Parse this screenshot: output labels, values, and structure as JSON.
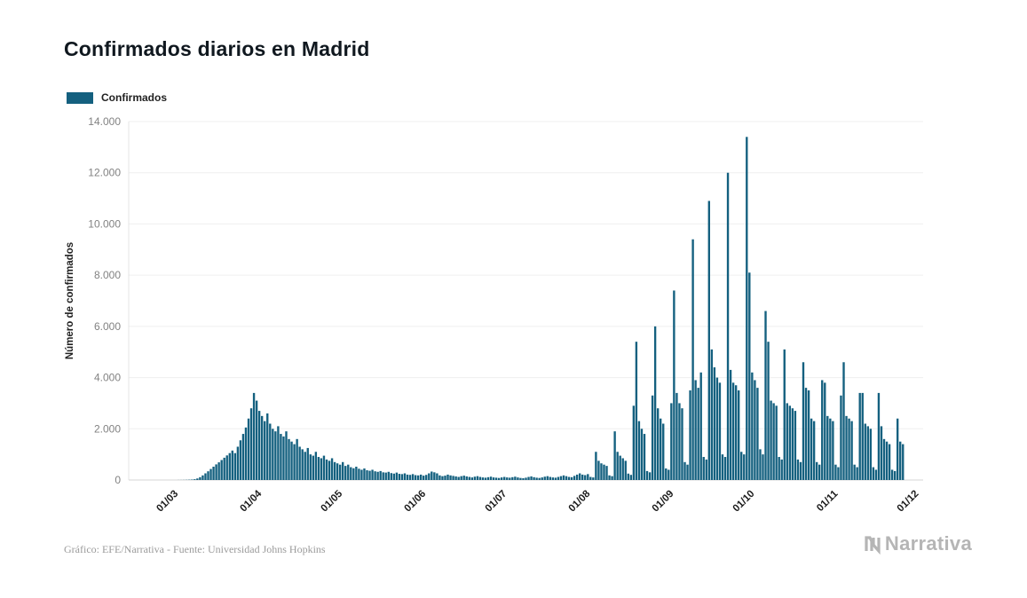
{
  "header": {
    "title": "Confirmados diarios en Madrid"
  },
  "legend": {
    "label": "Confirmados",
    "color": "#14607f"
  },
  "footer": {
    "credit": "Gráfico: EFE/Narrativa - Fuente: Universidad Johns Hopkins",
    "brand": "Narrativa"
  },
  "chart_data": {
    "type": "bar",
    "title": "Confirmados diarios en Madrid",
    "series_name": "Confirmados",
    "color": "#14607f",
    "xlabel": "",
    "ylabel": "Número de confirmados",
    "ylim": [
      0,
      14000
    ],
    "grid": true,
    "legend_position": "top-left",
    "x_start_date": "12/02",
    "x_frequency": "daily",
    "x_total_days": 295,
    "yticks": [
      {
        "value": 0,
        "label": "0"
      },
      {
        "value": 2000,
        "label": "2.000"
      },
      {
        "value": 4000,
        "label": "4.000"
      },
      {
        "value": 6000,
        "label": "6.000"
      },
      {
        "value": 8000,
        "label": "8.000"
      },
      {
        "value": 10000,
        "label": "10.000"
      },
      {
        "value": 12000,
        "label": "12.000"
      },
      {
        "value": 14000,
        "label": "14.000"
      }
    ],
    "xticks": [
      {
        "label": "01/03",
        "day": 18
      },
      {
        "label": "01/04",
        "day": 49
      },
      {
        "label": "01/05",
        "day": 79
      },
      {
        "label": "01/06",
        "day": 110
      },
      {
        "label": "01/07",
        "day": 140
      },
      {
        "label": "01/08",
        "day": 171
      },
      {
        "label": "01/09",
        "day": 202
      },
      {
        "label": "01/10",
        "day": 232
      },
      {
        "label": "01/11",
        "day": 263
      },
      {
        "label": "01/12",
        "day": 293
      }
    ],
    "values": [
      0,
      0,
      0,
      0,
      0,
      0,
      0,
      0,
      0,
      0,
      0,
      0,
      0,
      0,
      0,
      0,
      0,
      0,
      2,
      3,
      5,
      8,
      12,
      18,
      30,
      60,
      110,
      180,
      260,
      340,
      430,
      520,
      610,
      690,
      780,
      870,
      960,
      1050,
      1150,
      1050,
      1300,
      1550,
      1800,
      2050,
      2400,
      2800,
      3400,
      3100,
      2700,
      2500,
      2300,
      2600,
      2200,
      2000,
      1900,
      2100,
      1800,
      1700,
      1900,
      1600,
      1500,
      1400,
      1600,
      1300,
      1200,
      1100,
      1250,
      1000,
      950,
      1100,
      900,
      850,
      950,
      800,
      750,
      850,
      700,
      650,
      600,
      700,
      550,
      600,
      500,
      460,
      520,
      440,
      400,
      450,
      380,
      360,
      400,
      340,
      320,
      350,
      300,
      290,
      320,
      270,
      250,
      290,
      240,
      230,
      260,
      210,
      200,
      230,
      190,
      180,
      210,
      170,
      200,
      260,
      330,
      300,
      260,
      180,
      150,
      170,
      210,
      180,
      160,
      140,
      120,
      150,
      170,
      140,
      120,
      100,
      130,
      150,
      120,
      100,
      90,
      110,
      130,
      100,
      90,
      80,
      100,
      120,
      100,
      90,
      110,
      130,
      100,
      80,
      70,
      90,
      120,
      140,
      110,
      90,
      80,
      100,
      130,
      150,
      120,
      100,
      90,
      120,
      150,
      180,
      150,
      120,
      110,
      160,
      210,
      260,
      210,
      190,
      230,
      120,
      100,
      1100,
      750,
      650,
      600,
      550,
      180,
      150,
      1900,
      1100,
      950,
      850,
      750,
      250,
      200,
      2900,
      5400,
      2300,
      2000,
      1800,
      350,
      300,
      3300,
      6000,
      2800,
      2400,
      2200,
      450,
      400,
      3000,
      7400,
      3400,
      3000,
      2800,
      700,
      600,
      3500,
      9400,
      3900,
      3600,
      4200,
      900,
      800,
      10900,
      5100,
      4400,
      4000,
      3800,
      1000,
      900,
      12000,
      4300,
      3800,
      3700,
      3500,
      1100,
      1000,
      13400,
      8100,
      4200,
      3900,
      3600,
      1200,
      1000,
      6600,
      5400,
      3100,
      3000,
      2900,
      900,
      800,
      5100,
      3000,
      2900,
      2800,
      2700,
      800,
      700,
      4600,
      3600,
      3500,
      2400,
      2300,
      700,
      600,
      3900,
      3800,
      2500,
      2400,
      2300,
      600,
      500,
      3300,
      4600,
      2500,
      2400,
      2300,
      600,
      500,
      3400,
      3400,
      2200,
      2100,
      2000,
      500,
      400,
      3400,
      2100,
      1600,
      1500,
      1400,
      400,
      350,
      2400,
      1500,
      1400,
      0,
      0,
      0,
      0,
      0
    ]
  }
}
